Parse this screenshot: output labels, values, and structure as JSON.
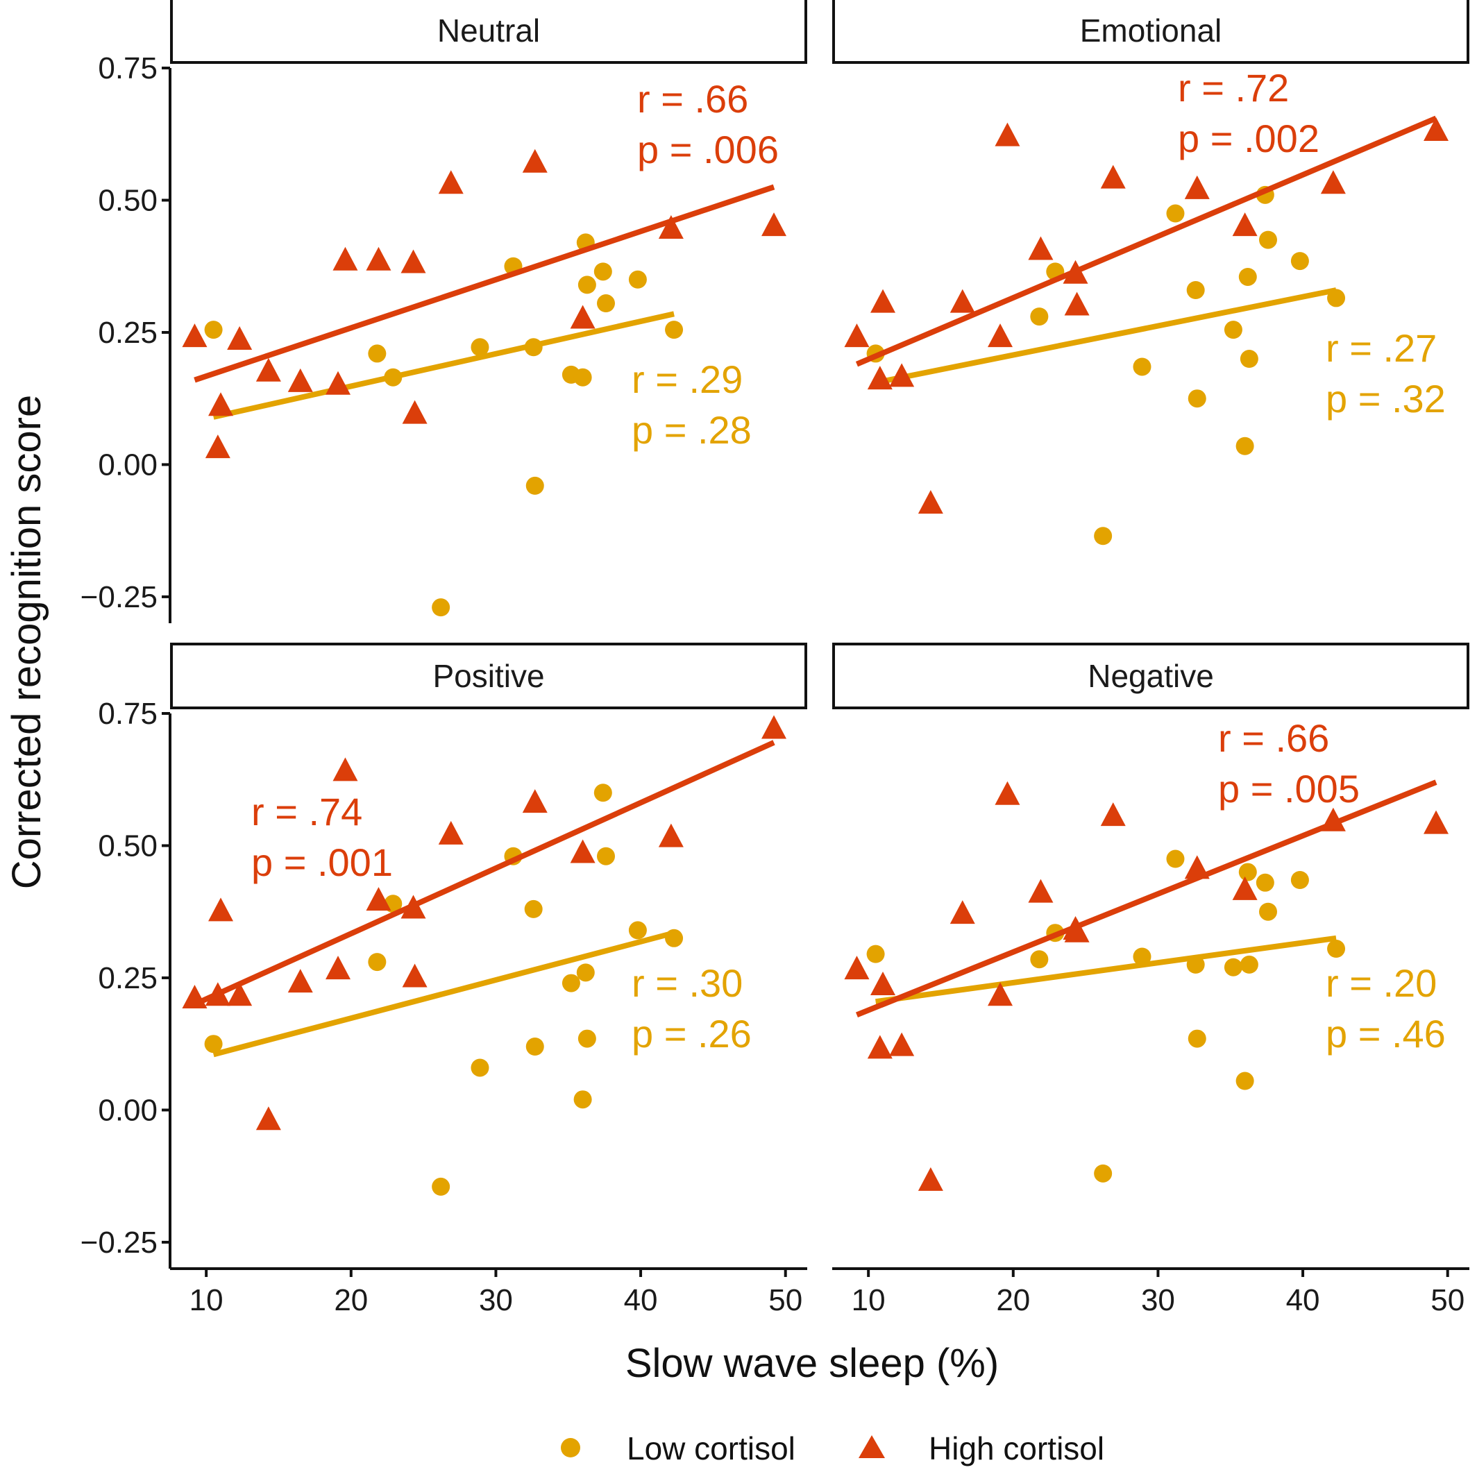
{
  "chart_data": {
    "type": "scatter",
    "xlabel": "Slow wave sleep (%)",
    "ylabel": "Corrected recognition score",
    "xlim": [
      7.5,
      51.5
    ],
    "ylim": [
      -0.3,
      0.75
    ],
    "x_ticks": [
      10,
      20,
      30,
      40,
      50
    ],
    "y_ticks": [
      -0.25,
      0,
      0.25,
      0.5,
      0.75
    ],
    "y_tick_labels": [
      "−0.25",
      "0.00",
      "0.25",
      "0.50",
      "0.75"
    ],
    "colors": {
      "low": "#E3A300",
      "high": "#DB3E0A"
    },
    "legend": {
      "position": "bottom",
      "items": [
        {
          "key": "low",
          "label": "Low cortisol",
          "marker": "circle"
        },
        {
          "key": "high",
          "label": "High cortisol",
          "marker": "triangle"
        }
      ]
    },
    "panels": [
      {
        "title": "Neutral",
        "series": [
          {
            "key": "low",
            "points": [
              [
                10.5,
                0.255
              ],
              [
                21.8,
                0.21
              ],
              [
                22.9,
                0.165
              ],
              [
                26.2,
                -0.27
              ],
              [
                28.9,
                0.222
              ],
              [
                31.2,
                0.375
              ],
              [
                32.6,
                0.222
              ],
              [
                32.7,
                -0.04
              ],
              [
                35.2,
                0.17
              ],
              [
                36.0,
                0.165
              ],
              [
                36.2,
                0.42
              ],
              [
                36.3,
                0.34
              ],
              [
                37.4,
                0.365
              ],
              [
                37.6,
                0.305
              ],
              [
                39.8,
                0.35
              ],
              [
                42.3,
                0.255
              ]
            ],
            "fit": {
              "x": [
                10.5,
                42.3
              ],
              "y": [
                0.09,
                0.285
              ]
            },
            "annotation": [
              "r = .29",
              "p = .28"
            ]
          },
          {
            "key": "high",
            "points": [
              [
                9.2,
                0.24
              ],
              [
                10.8,
                0.03
              ],
              [
                11.0,
                0.11
              ],
              [
                12.3,
                0.235
              ],
              [
                14.3,
                0.175
              ],
              [
                16.5,
                0.155
              ],
              [
                19.1,
                0.15
              ],
              [
                19.6,
                0.385
              ],
              [
                21.9,
                0.385
              ],
              [
                24.3,
                0.38
              ],
              [
                24.4,
                0.095
              ],
              [
                26.9,
                0.53
              ],
              [
                32.7,
                0.57
              ],
              [
                36.0,
                0.275
              ],
              [
                42.1,
                0.445
              ],
              [
                49.2,
                0.45
              ]
            ],
            "fit": {
              "x": [
                9.2,
                49.2
              ],
              "y": [
                0.16,
                0.525
              ]
            },
            "annotation": [
              "r = .66",
              "p = .006"
            ]
          }
        ]
      },
      {
        "title": "Emotional",
        "series": [
          {
            "key": "low",
            "points": [
              [
                10.5,
                0.21
              ],
              [
                21.8,
                0.28
              ],
              [
                22.9,
                0.365
              ],
              [
                26.2,
                -0.135
              ],
              [
                28.9,
                0.185
              ],
              [
                31.2,
                0.475
              ],
              [
                32.6,
                0.33
              ],
              [
                32.7,
                0.125
              ],
              [
                35.2,
                0.255
              ],
              [
                36.0,
                0.035
              ],
              [
                36.2,
                0.355
              ],
              [
                36.3,
                0.2
              ],
              [
                37.4,
                0.51
              ],
              [
                37.6,
                0.425
              ],
              [
                39.8,
                0.385
              ],
              [
                42.3,
                0.315
              ]
            ],
            "fit": {
              "x": [
                10.5,
                42.3
              ],
              "y": [
                0.155,
                0.33
              ]
            },
            "annotation": [
              "r = .27",
              "p = .32"
            ]
          },
          {
            "key": "high",
            "points": [
              [
                9.2,
                0.24
              ],
              [
                10.8,
                0.16
              ],
              [
                11.0,
                0.305
              ],
              [
                12.3,
                0.165
              ],
              [
                14.3,
                -0.075
              ],
              [
                16.5,
                0.305
              ],
              [
                19.1,
                0.24
              ],
              [
                19.6,
                0.62
              ],
              [
                21.9,
                0.405
              ],
              [
                24.3,
                0.36
              ],
              [
                24.4,
                0.3
              ],
              [
                26.9,
                0.54
              ],
              [
                32.7,
                0.52
              ],
              [
                36.0,
                0.45
              ],
              [
                42.1,
                0.53
              ],
              [
                49.2,
                0.63
              ]
            ],
            "fit": {
              "x": [
                9.2,
                49.2
              ],
              "y": [
                0.19,
                0.655
              ]
            },
            "annotation": [
              "r = .72",
              "p = .002"
            ]
          }
        ]
      },
      {
        "title": "Positive",
        "series": [
          {
            "key": "low",
            "points": [
              [
                10.5,
                0.125
              ],
              [
                21.8,
                0.28
              ],
              [
                22.9,
                0.39
              ],
              [
                26.2,
                -0.145
              ],
              [
                28.9,
                0.08
              ],
              [
                31.2,
                0.48
              ],
              [
                32.6,
                0.38
              ],
              [
                32.7,
                0.12
              ],
              [
                35.2,
                0.24
              ],
              [
                36.0,
                0.02
              ],
              [
                36.2,
                0.26
              ],
              [
                36.3,
                0.135
              ],
              [
                37.4,
                0.6
              ],
              [
                37.6,
                0.48
              ],
              [
                39.8,
                0.34
              ],
              [
                42.3,
                0.325
              ]
            ],
            "fit": {
              "x": [
                10.5,
                42.3
              ],
              "y": [
                0.105,
                0.335
              ]
            },
            "annotation": [
              "r = .30",
              "p = .26"
            ]
          },
          {
            "key": "high",
            "points": [
              [
                9.2,
                0.21
              ],
              [
                10.8,
                0.215
              ],
              [
                11.0,
                0.375
              ],
              [
                12.3,
                0.215
              ],
              [
                14.3,
                -0.02
              ],
              [
                16.5,
                0.24
              ],
              [
                19.1,
                0.265
              ],
              [
                19.6,
                0.64
              ],
              [
                21.9,
                0.395
              ],
              [
                24.3,
                0.38
              ],
              [
                24.4,
                0.25
              ],
              [
                26.9,
                0.52
              ],
              [
                32.7,
                0.58
              ],
              [
                36.0,
                0.485
              ],
              [
                42.1,
                0.515
              ],
              [
                49.2,
                0.72
              ]
            ],
            "fit": {
              "x": [
                9.2,
                49.2
              ],
              "y": [
                0.2,
                0.695
              ]
            },
            "annotation": [
              "r = .74",
              "p = .001"
            ]
          }
        ]
      },
      {
        "title": "Negative",
        "series": [
          {
            "key": "low",
            "points": [
              [
                10.5,
                0.295
              ],
              [
                21.8,
                0.285
              ],
              [
                22.9,
                0.335
              ],
              [
                26.2,
                -0.12
              ],
              [
                28.9,
                0.29
              ],
              [
                31.2,
                0.475
              ],
              [
                32.6,
                0.275
              ],
              [
                32.7,
                0.135
              ],
              [
                35.2,
                0.27
              ],
              [
                36.0,
                0.055
              ],
              [
                36.2,
                0.45
              ],
              [
                36.3,
                0.275
              ],
              [
                37.4,
                0.43
              ],
              [
                37.6,
                0.375
              ],
              [
                39.8,
                0.435
              ],
              [
                42.3,
                0.305
              ]
            ],
            "fit": {
              "x": [
                10.5,
                42.3
              ],
              "y": [
                0.205,
                0.325
              ]
            },
            "annotation": [
              "r = .20",
              "p = .46"
            ]
          },
          {
            "key": "high",
            "points": [
              [
                9.2,
                0.265
              ],
              [
                10.8,
                0.115
              ],
              [
                11.0,
                0.235
              ],
              [
                12.3,
                0.12
              ],
              [
                14.3,
                -0.135
              ],
              [
                16.5,
                0.37
              ],
              [
                19.1,
                0.215
              ],
              [
                19.6,
                0.595
              ],
              [
                21.9,
                0.41
              ],
              [
                24.3,
                0.34
              ],
              [
                24.4,
                0.335
              ],
              [
                26.9,
                0.555
              ],
              [
                32.7,
                0.455
              ],
              [
                36.0,
                0.415
              ],
              [
                42.1,
                0.545
              ],
              [
                49.2,
                0.54
              ]
            ],
            "fit": {
              "x": [
                9.2,
                49.2
              ],
              "y": [
                0.18,
                0.62
              ]
            },
            "annotation": [
              "r = .66",
              "p = .005"
            ]
          }
        ]
      }
    ]
  }
}
